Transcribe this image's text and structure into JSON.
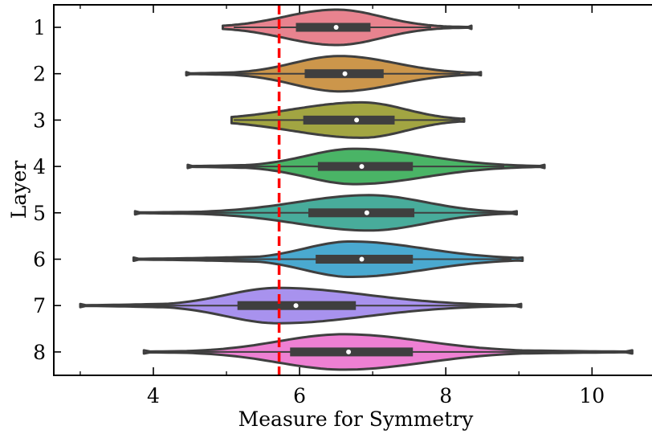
{
  "chart_data": {
    "type": "violin",
    "xlabel": "Measure for Symmetry",
    "ylabel": "Layer",
    "xlim": [
      2.65,
      10.8
    ],
    "xticks": [
      4,
      6,
      8,
      10
    ],
    "xtick_labels": [
      "4",
      "6",
      "8",
      "10"
    ],
    "categories": [
      "1",
      "2",
      "3",
      "4",
      "5",
      "6",
      "7",
      "8"
    ],
    "reference_line": {
      "x": 5.72,
      "style": "dashed",
      "color": "#ff0000"
    },
    "series": [
      {
        "name": "1",
        "color": "#e8838f",
        "min": 4.95,
        "q1": 5.95,
        "median": 6.5,
        "q3": 6.97,
        "max": 8.35,
        "mode": 6.5,
        "whisker_low": 5.1,
        "whisker_high": 7.8
      },
      {
        "name": "2",
        "color": "#cc964b",
        "min": 4.45,
        "q1": 6.07,
        "median": 6.62,
        "q3": 7.15,
        "max": 8.48,
        "mode": 6.55,
        "whisker_low": 4.7,
        "whisker_high": 8.2
      },
      {
        "name": "3",
        "color": "#a2a542",
        "min": 5.07,
        "q1": 6.05,
        "median": 6.78,
        "q3": 7.3,
        "max": 8.25,
        "mode": 6.85,
        "whisker_low": 5.1,
        "whisker_high": 8.2
      },
      {
        "name": "4",
        "color": "#4ab466",
        "min": 4.47,
        "q1": 6.25,
        "median": 6.85,
        "q3": 7.55,
        "max": 9.35,
        "mode": 6.75,
        "whisker_low": 4.5,
        "whisker_high": 8.8
      },
      {
        "name": "5",
        "color": "#48ac9b",
        "min": 3.75,
        "q1": 6.12,
        "median": 6.92,
        "q3": 7.57,
        "max": 8.97,
        "mode": 6.95,
        "whisker_low": 4.0,
        "whisker_high": 8.9
      },
      {
        "name": "6",
        "color": "#4aa9d0",
        "min": 3.73,
        "q1": 6.22,
        "median": 6.85,
        "q3": 7.55,
        "max": 9.05,
        "mode": 6.7,
        "whisker_low": 4.4,
        "whisker_high": 8.9
      },
      {
        "name": "7",
        "color": "#a892ee",
        "min": 3.0,
        "q1": 5.15,
        "median": 5.95,
        "q3": 6.77,
        "max": 9.03,
        "mode": 5.7,
        "whisker_low": 3.2,
        "whisker_high": 8.6
      },
      {
        "name": "8",
        "color": "#ee80d3",
        "min": 3.87,
        "q1": 5.87,
        "median": 6.67,
        "q3": 7.55,
        "max": 10.55,
        "mode": 6.6,
        "whisker_low": 4.2,
        "whisker_high": 9.4
      }
    ]
  }
}
